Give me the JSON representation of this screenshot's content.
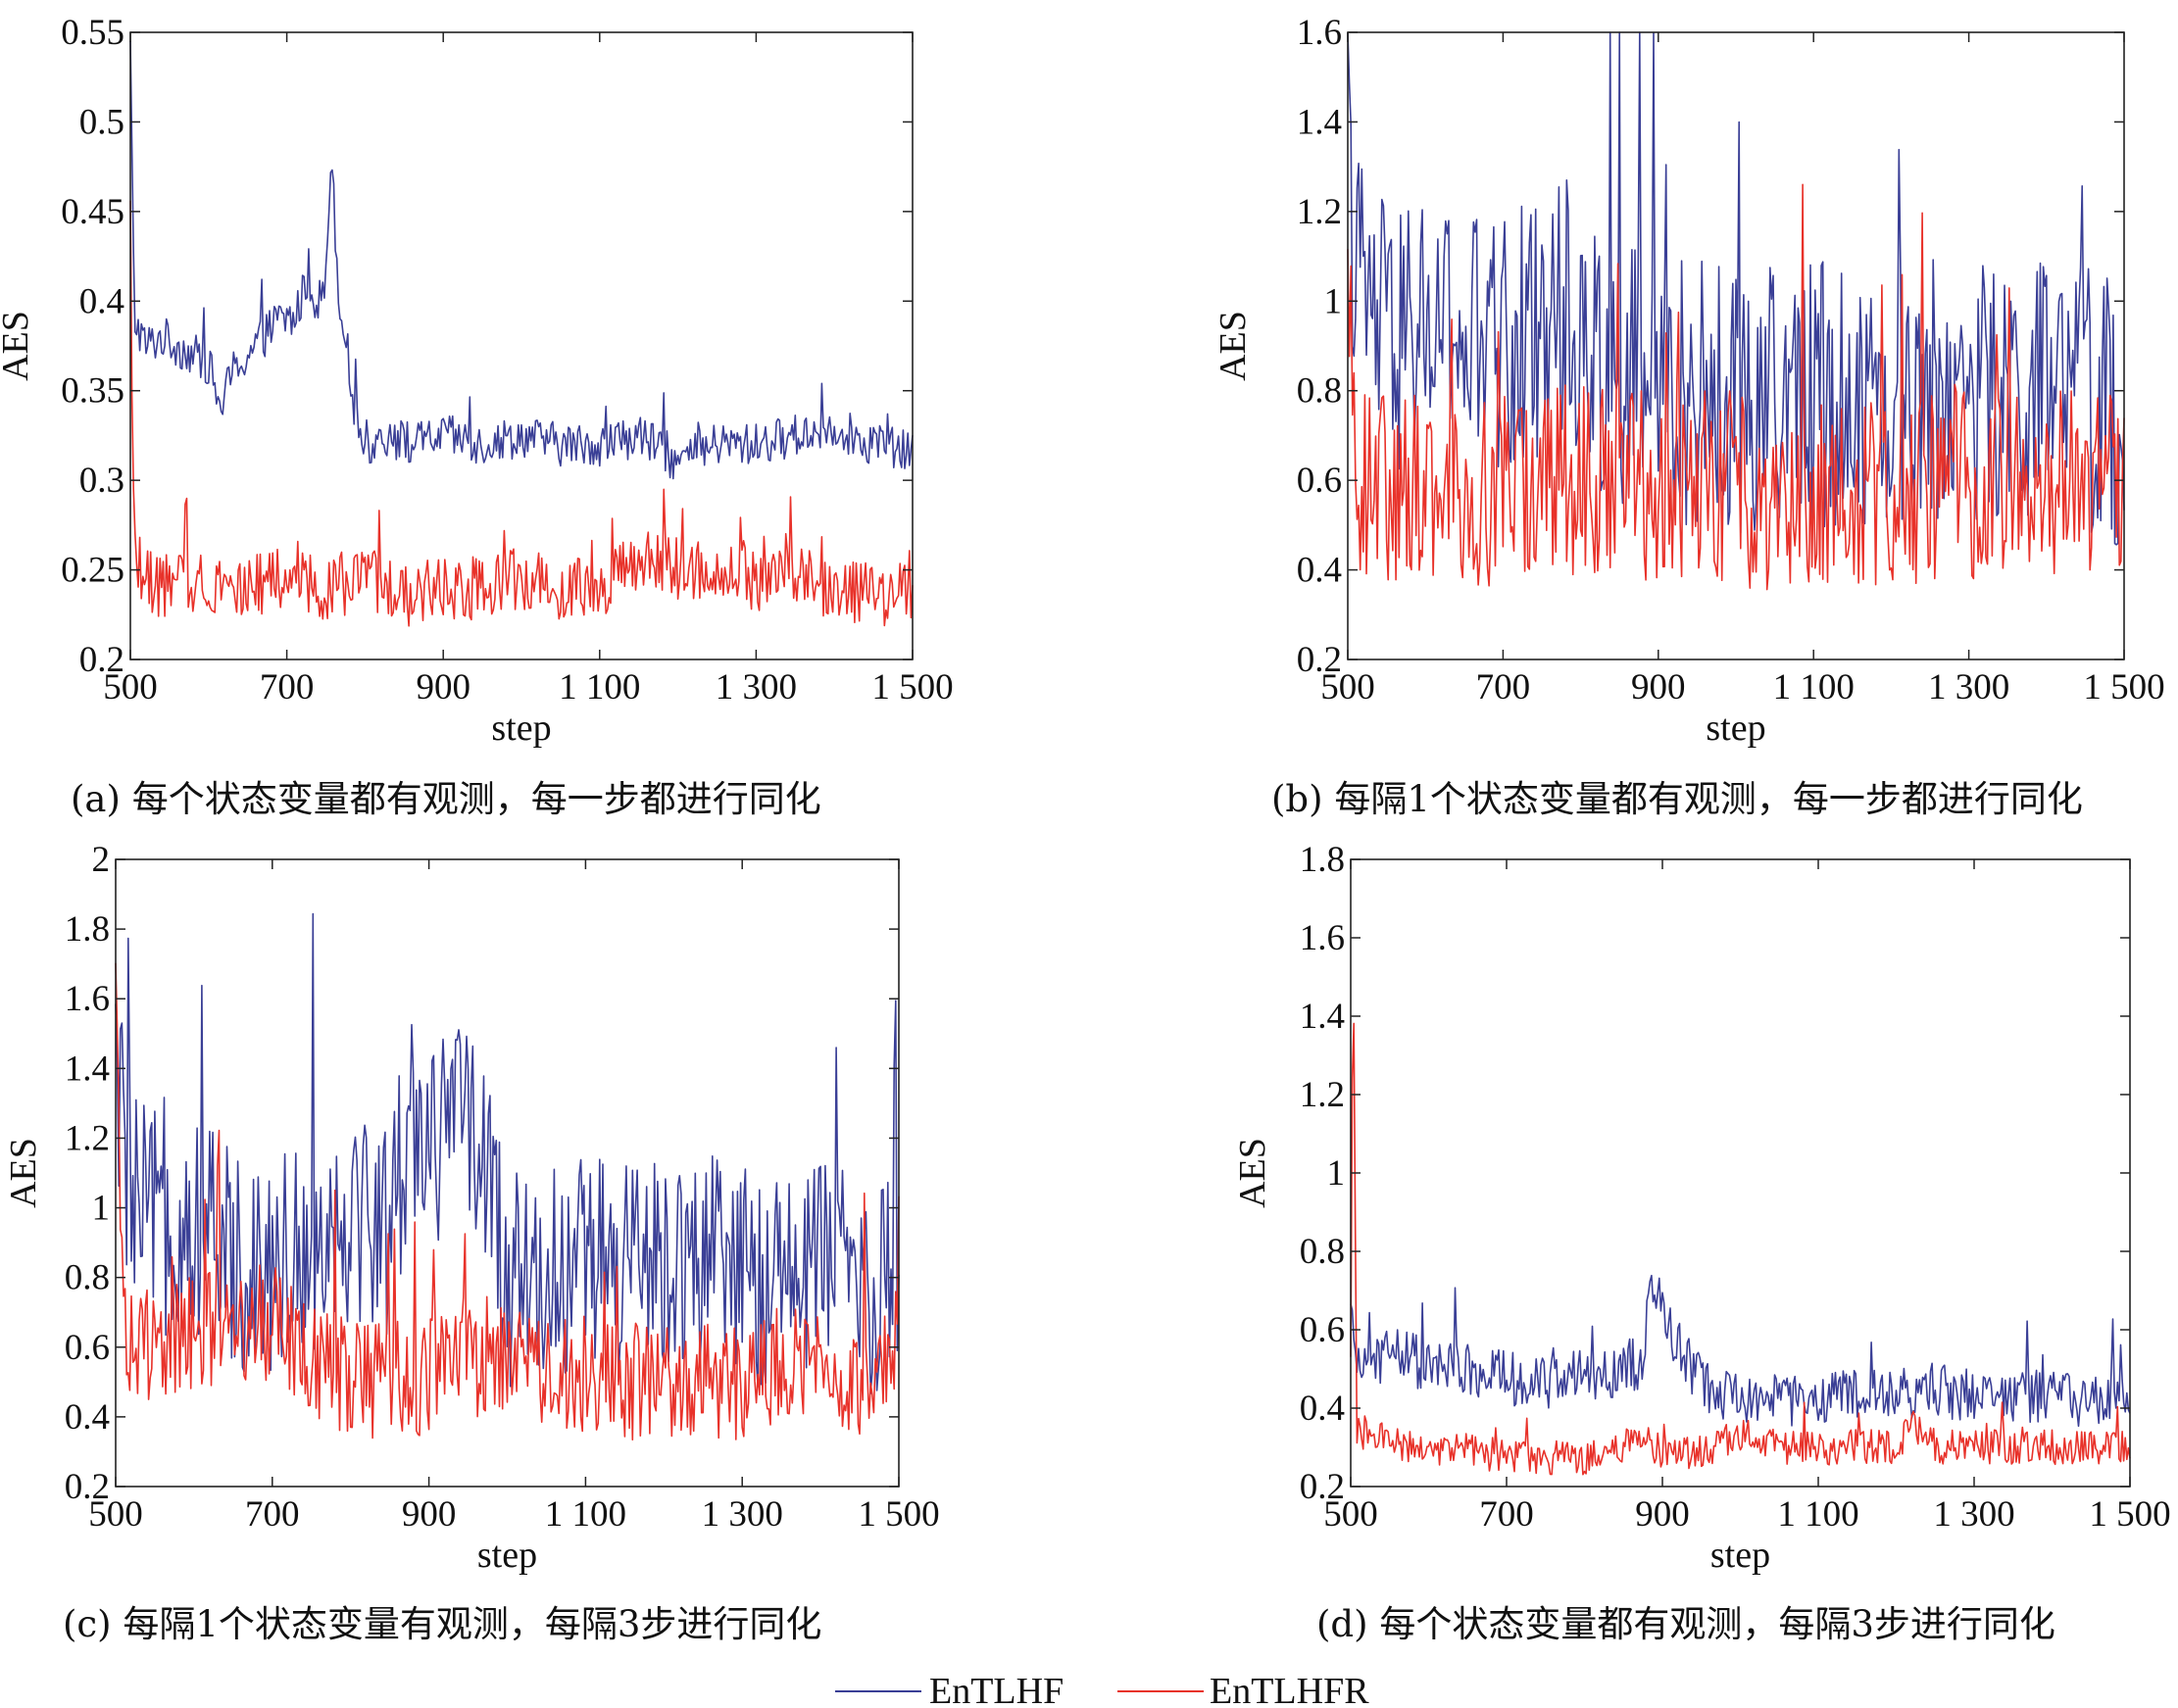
{
  "legend": [
    {
      "name": "EnTLHF",
      "color": "#3a3f96"
    },
    {
      "name": "EnTLHFR",
      "color": "#e8322a"
    }
  ],
  "chart_data": [
    {
      "type": "line",
      "caption": "(a) 每个状态变量都有观测，每一步都进行同化",
      "xlabel": "step",
      "ylabel": "AES",
      "xlim": [
        500,
        1500
      ],
      "ylim": [
        0.2,
        0.55
      ],
      "xticks": [
        500,
        700,
        900,
        1100,
        1300,
        1500
      ],
      "xtick_labels": [
        "500",
        "700",
        "900",
        "1 100",
        "1 300",
        "1 500"
      ],
      "yticks": [
        0.2,
        0.25,
        0.3,
        0.35,
        0.4,
        0.45,
        0.5,
        0.55
      ],
      "ytick_labels": [
        "0.2",
        "0.25",
        "0.3",
        "0.35",
        "0.4",
        "0.45",
        "0.5",
        "0.55"
      ],
      "series": [
        {
          "name": "EnTLHF",
          "color": "#3a3f96",
          "x": [
            500,
            505,
            520,
            540,
            560,
            580,
            600,
            615,
            630,
            650,
            670,
            690,
            710,
            725,
            740,
            750,
            757,
            765,
            775,
            790,
            805,
            830,
            860,
            900,
            950,
            1000,
            1050,
            1100,
            1150,
            1200,
            1250,
            1300,
            1350,
            1400,
            1450,
            1500
          ],
          "y": [
            0.54,
            0.39,
            0.375,
            0.38,
            0.375,
            0.37,
            0.365,
            0.34,
            0.36,
            0.37,
            0.38,
            0.39,
            0.39,
            0.41,
            0.4,
            0.41,
            0.49,
            0.41,
            0.38,
            0.33,
            0.32,
            0.325,
            0.32,
            0.325,
            0.32,
            0.325,
            0.32,
            0.32,
            0.325,
            0.31,
            0.32,
            0.32,
            0.325,
            0.33,
            0.32,
            0.315
          ],
          "noise": 0.012
        },
        {
          "name": "EnTLHFR",
          "color": "#e8322a",
          "x": [
            500,
            505,
            515,
            550,
            600,
            650,
            700,
            750,
            800,
            850,
            900,
            950,
            1000,
            1050,
            1100,
            1150,
            1200,
            1250,
            1300,
            1350,
            1400,
            1450,
            1500
          ],
          "y": [
            0.4,
            0.27,
            0.245,
            0.24,
            0.245,
            0.24,
            0.245,
            0.24,
            0.245,
            0.235,
            0.24,
            0.24,
            0.245,
            0.24,
            0.24,
            0.255,
            0.25,
            0.25,
            0.245,
            0.245,
            0.24,
            0.235,
            0.24
          ],
          "noise": 0.018
        }
      ]
    },
    {
      "type": "line",
      "caption": "(b) 每隔1个状态变量都有观测，每一步都进行同化",
      "xlabel": "step",
      "ylabel": "AES",
      "xlim": [
        500,
        1500
      ],
      "ylim": [
        0.2,
        1.6
      ],
      "xticks": [
        500,
        700,
        900,
        1100,
        1300,
        1500
      ],
      "xtick_labels": [
        "500",
        "700",
        "900",
        "1 100",
        "1 300",
        "1 500"
      ],
      "yticks": [
        0.2,
        0.4,
        0.6,
        0.8,
        1.0,
        1.2,
        1.4,
        1.6
      ],
      "ytick_labels": [
        "0.2",
        "0.4",
        "0.6",
        "0.8",
        "1",
        "1.2",
        "1.4",
        "1.6"
      ],
      "series": [
        {
          "name": "EnTLHF",
          "color": "#3a3f96",
          "x": [
            500,
            520,
            560,
            600,
            650,
            700,
            750,
            780,
            800,
            850,
            900,
            950,
            1000,
            1050,
            1100,
            1150,
            1200,
            1250,
            1300,
            1350,
            1400,
            1450,
            1500
          ],
          "y": [
            1.25,
            1.0,
            0.9,
            0.95,
            0.9,
            0.9,
            0.95,
            1.0,
            0.9,
            0.85,
            0.8,
            0.8,
            0.78,
            0.78,
            0.8,
            0.78,
            0.78,
            0.8,
            0.8,
            0.78,
            0.8,
            0.78,
            0.75
          ],
          "noise": 0.3
        },
        {
          "name": "EnTLHFR",
          "color": "#e8322a",
          "x": [
            500,
            510,
            550,
            600,
            700,
            800,
            900,
            1000,
            1100,
            1200,
            1300,
            1400,
            1500
          ],
          "y": [
            1.0,
            0.62,
            0.58,
            0.6,
            0.58,
            0.6,
            0.58,
            0.58,
            0.57,
            0.58,
            0.6,
            0.6,
            0.6
          ],
          "noise": 0.22
        }
      ]
    },
    {
      "type": "line",
      "caption": "(c) 每隔1个状态变量有观测，每隔3步进行同化",
      "xlabel": "step",
      "ylabel": "AES",
      "xlim": [
        500,
        1500
      ],
      "ylim": [
        0.2,
        2.0
      ],
      "xticks": [
        500,
        700,
        900,
        1100,
        1300,
        1500
      ],
      "xtick_labels": [
        "500",
        "700",
        "900",
        "1 100",
        "1 300",
        "1 500"
      ],
      "yticks": [
        0.2,
        0.4,
        0.6,
        0.8,
        1.0,
        1.2,
        1.4,
        1.6,
        1.8,
        2.0
      ],
      "ytick_labels": [
        "0.2",
        "0.4",
        "0.6",
        "0.8",
        "1",
        "1.2",
        "1.4",
        "1.6",
        "1.8",
        "2"
      ],
      "series": [
        {
          "name": "EnTLHF",
          "color": "#3a3f96",
          "x": [
            500,
            520,
            560,
            600,
            650,
            700,
            750,
            800,
            850,
            880,
            900,
            930,
            950,
            970,
            1000,
            1050,
            1100,
            1150,
            1200,
            1250,
            1300,
            1350,
            1400,
            1450,
            1500
          ],
          "y": [
            1.4,
            1.0,
            0.95,
            0.95,
            0.85,
            0.85,
            0.9,
            1.0,
            0.95,
            1.3,
            1.2,
            1.2,
            1.3,
            1.1,
            0.8,
            0.8,
            0.85,
            0.8,
            0.85,
            0.85,
            0.8,
            0.8,
            0.85,
            0.8,
            0.75
          ],
          "noise": 0.32
        },
        {
          "name": "EnTLHFR",
          "color": "#e8322a",
          "x": [
            500,
            510,
            550,
            600,
            650,
            700,
            750,
            800,
            850,
            900,
            950,
            1000,
            1050,
            1100,
            1150,
            1200,
            1250,
            1300,
            1350,
            1400,
            1450,
            1500
          ],
          "y": [
            1.6,
            0.65,
            0.6,
            0.65,
            0.65,
            0.68,
            0.55,
            0.52,
            0.5,
            0.52,
            0.55,
            0.55,
            0.52,
            0.52,
            0.5,
            0.5,
            0.5,
            0.5,
            0.55,
            0.55,
            0.52,
            0.55
          ],
          "noise": 0.17
        }
      ]
    },
    {
      "type": "line",
      "caption": "(d) 每个状态变量都有观测，每隔3步进行同化",
      "xlabel": "step",
      "ylabel": "AES",
      "xlim": [
        500,
        1500
      ],
      "ylim": [
        0.2,
        1.8
      ],
      "xticks": [
        500,
        700,
        900,
        1100,
        1300,
        1500
      ],
      "xtick_labels": [
        "500",
        "700",
        "900",
        "1 100",
        "1 300",
        "1 500"
      ],
      "yticks": [
        0.2,
        0.4,
        0.6,
        0.8,
        1.0,
        1.2,
        1.4,
        1.6,
        1.8
      ],
      "ytick_labels": [
        "0.2",
        "0.4",
        "0.6",
        "0.8",
        "1",
        "1.2",
        "1.4",
        "1.6",
        "1.8"
      ],
      "series": [
        {
          "name": "EnTLHF",
          "color": "#3a3f96",
          "x": [
            500,
            505,
            520,
            560,
            600,
            650,
            700,
            750,
            800,
            850,
            875,
            885,
            900,
            930,
            960,
            1000,
            1050,
            1100,
            1150,
            1200,
            1250,
            1300,
            1350,
            1400,
            1450,
            1500
          ],
          "y": [
            0.62,
            0.52,
            0.52,
            0.55,
            0.5,
            0.5,
            0.48,
            0.46,
            0.48,
            0.5,
            0.52,
            0.72,
            0.65,
            0.52,
            0.45,
            0.42,
            0.42,
            0.43,
            0.43,
            0.43,
            0.45,
            0.43,
            0.43,
            0.43,
            0.42,
            0.43
          ],
          "noise": 0.07
        },
        {
          "name": "EnTLHFR",
          "color": "#e8322a",
          "x": [
            500,
            503,
            508,
            530,
            600,
            700,
            800,
            880,
            900,
            950,
            1000,
            1050,
            1100,
            1150,
            1200,
            1225,
            1250,
            1300,
            1400,
            1500
          ],
          "y": [
            0.5,
            1.65,
            0.35,
            0.32,
            0.3,
            0.28,
            0.27,
            0.32,
            0.28,
            0.29,
            0.33,
            0.3,
            0.3,
            0.3,
            0.3,
            0.36,
            0.3,
            0.3,
            0.3,
            0.3
          ],
          "noise": 0.045
        }
      ]
    }
  ]
}
